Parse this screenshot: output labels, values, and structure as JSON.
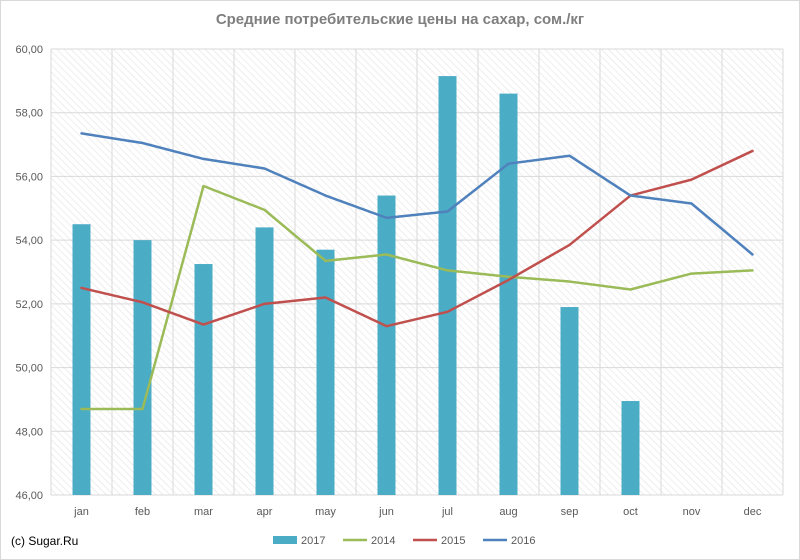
{
  "chart_data": {
    "type": "bar+line",
    "title": "Средние потребительские цены на сахар, сом./кг",
    "categories": [
      "jan",
      "feb",
      "mar",
      "apr",
      "may",
      "jun",
      "jul",
      "aug",
      "sep",
      "oct",
      "nov",
      "dec"
    ],
    "ylim": [
      46,
      60
    ],
    "yticks": [
      "46,00",
      "48,00",
      "50,00",
      "52,00",
      "54,00",
      "56,00",
      "58,00",
      "60,00"
    ],
    "grid": true,
    "legend_position": "bottom",
    "bar_series": {
      "name": "2017",
      "color": "#4bacc6",
      "values": [
        54.5,
        54.0,
        53.25,
        54.4,
        53.7,
        55.4,
        59.15,
        58.6,
        51.9,
        48.95,
        null,
        null
      ]
    },
    "line_series": [
      {
        "name": "2014",
        "color": "#9bbb59",
        "values": [
          48.7,
          48.7,
          55.7,
          54.95,
          53.35,
          53.55,
          53.05,
          52.85,
          52.7,
          52.45,
          52.95,
          53.05
        ]
      },
      {
        "name": "2015",
        "color": "#c0504d",
        "values": [
          52.5,
          52.05,
          51.35,
          52.0,
          52.2,
          51.3,
          51.75,
          52.75,
          53.85,
          55.4,
          55.9,
          56.8
        ]
      },
      {
        "name": "2016",
        "color": "#4f81bd",
        "values": [
          57.35,
          57.05,
          56.55,
          56.25,
          55.4,
          54.7,
          54.9,
          56.4,
          56.65,
          55.4,
          55.15,
          53.55
        ]
      }
    ],
    "legend_order": [
      "2017",
      "2014",
      "2015",
      "2016"
    ]
  },
  "source_note": "(c) Sugar.Ru"
}
